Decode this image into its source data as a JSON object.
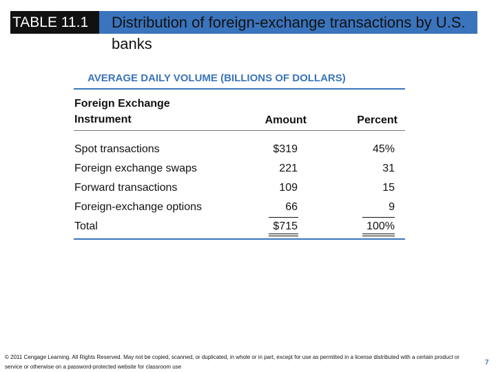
{
  "header": {
    "table_label": "TABLE 11.1",
    "title": "Distribution of foreign-exchange transactions by U.S. banks"
  },
  "table": {
    "heading": "AVERAGE DAILY VOLUME (BILLIONS OF DOLLARS)",
    "columns": {
      "instrument": "Foreign Exchange Instrument",
      "amount": "Amount",
      "percent": "Percent"
    },
    "rows": [
      {
        "instrument": "Spot transactions",
        "amount": "$319",
        "percent": "45%"
      },
      {
        "instrument": "Foreign exchange swaps",
        "amount": "221",
        "percent": "31"
      },
      {
        "instrument": "Forward transactions",
        "amount": "109",
        "percent": "15"
      },
      {
        "instrument": "Foreign-exchange options",
        "amount": "66",
        "percent": "9"
      },
      {
        "instrument": "Total",
        "amount": "$715",
        "percent": "100%"
      }
    ]
  },
  "footer": {
    "copyright": "© 2011 Cengage Learning. All Rights Reserved. May not be copied, scanned, or duplicated, in whole or in part, except for use as permitted in a license distributed with a certain product or service or otherwise on a password-protected website for classroom use",
    "page_number": "7"
  },
  "colors": {
    "accent": "#3a74bd",
    "label_bg": "#111111"
  }
}
